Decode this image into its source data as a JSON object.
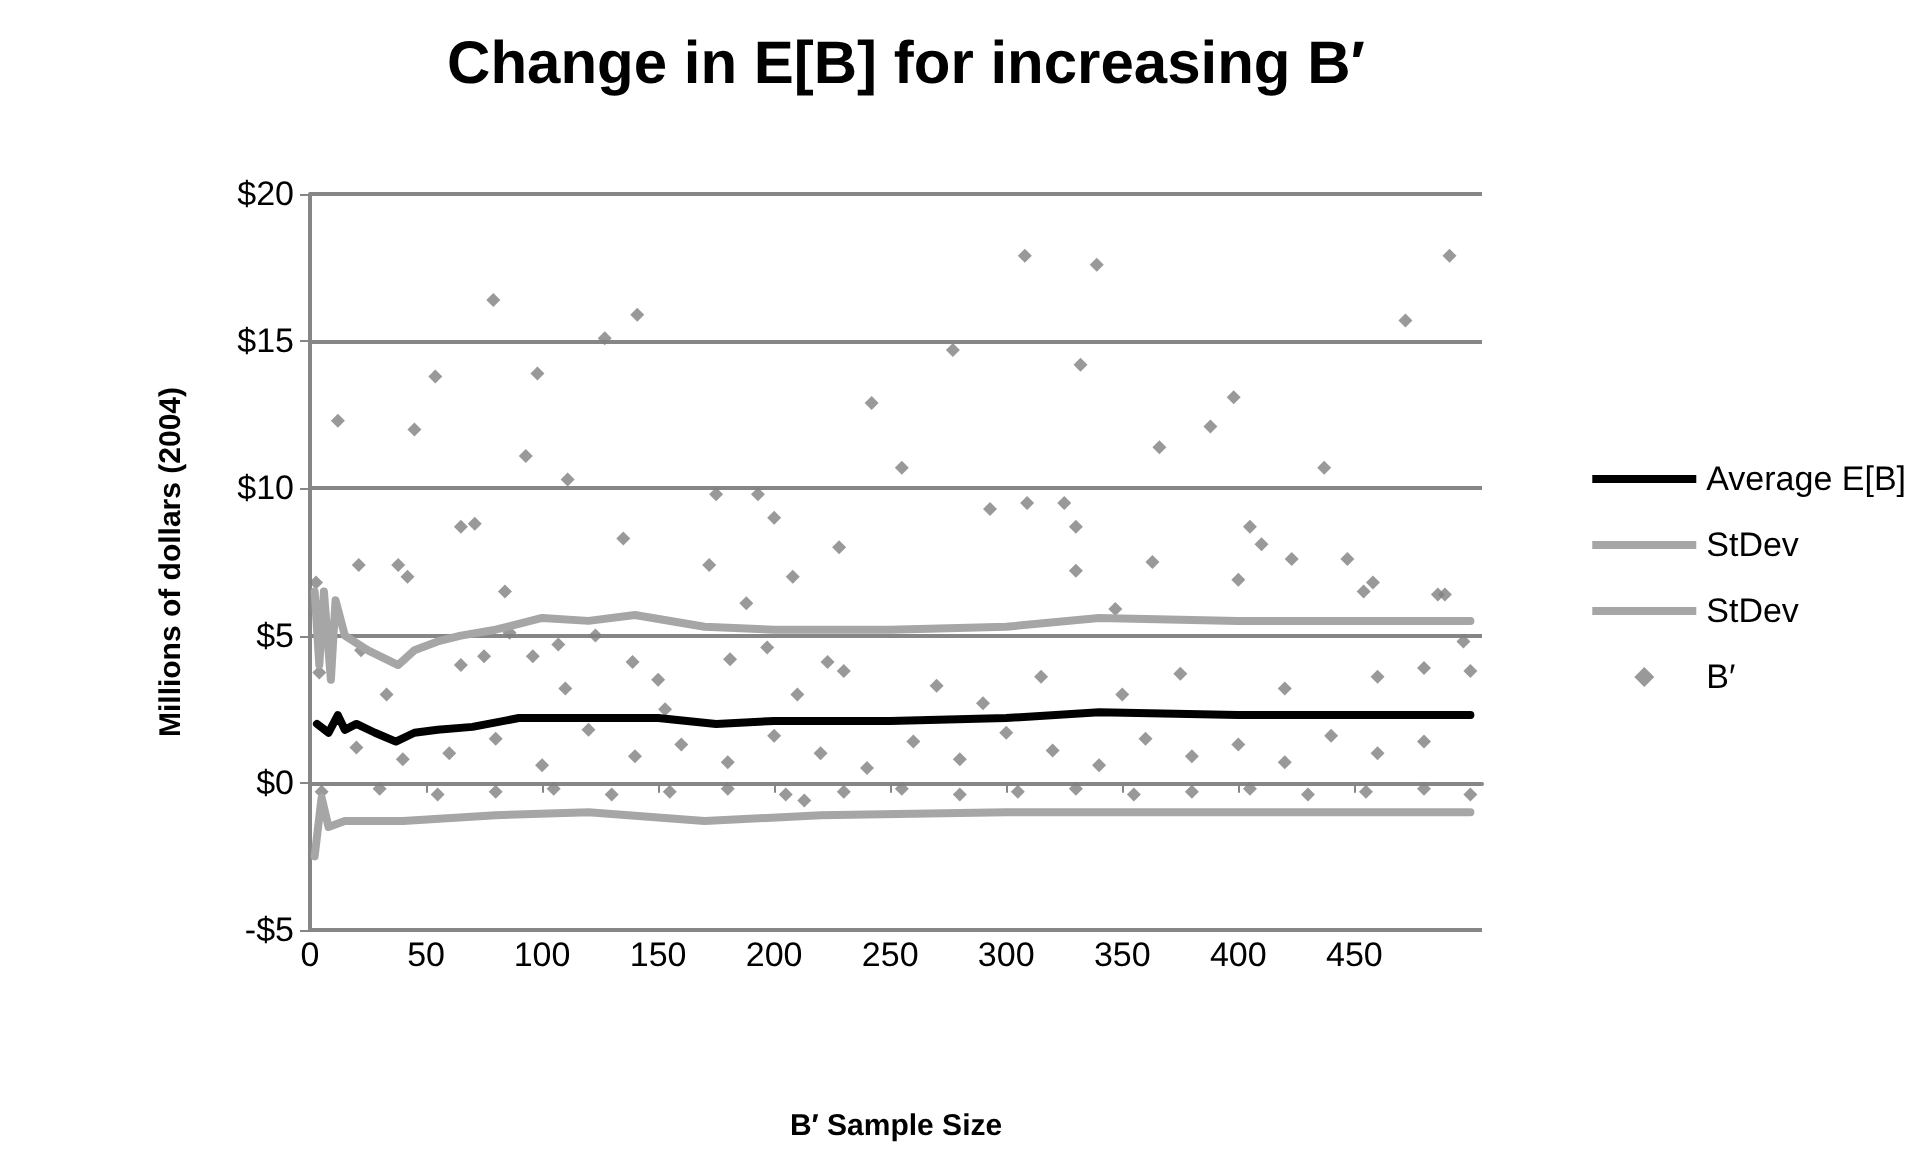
{
  "chart_data": {
    "type": "scatter",
    "title": "Change in E[B] for increasing B′",
    "xlabel": "B′ Sample Size",
    "ylabel": "Millions of dollars (2004)",
    "xlim": [
      0,
      505
    ],
    "xticks": [
      0,
      50,
      100,
      150,
      200,
      250,
      300,
      350,
      400,
      450
    ],
    "ylim": [
      -5,
      20
    ],
    "yticks": [
      {
        "value": -5,
        "label": "-$5"
      },
      {
        "value": 0,
        "label": "$0"
      },
      {
        "value": 5,
        "label": "$5"
      },
      {
        "value": 10,
        "label": "$10"
      },
      {
        "value": 15,
        "label": "$15"
      },
      {
        "value": 20,
        "label": "$20"
      }
    ],
    "grid": "y",
    "legend": "right",
    "series": [
      {
        "name": "Average E[B]",
        "type": "line",
        "color": "#000000",
        "marker": "none",
        "x": [
          3,
          8,
          12,
          15,
          20,
          28,
          37,
          45,
          55,
          70,
          90,
          120,
          150,
          175,
          200,
          250,
          300,
          340,
          400,
          450,
          500
        ],
        "values": [
          2.0,
          1.7,
          2.3,
          1.8,
          2.0,
          1.7,
          1.4,
          1.7,
          1.8,
          1.9,
          2.2,
          2.2,
          2.2,
          2.0,
          2.1,
          2.1,
          2.2,
          2.4,
          2.3,
          2.3,
          2.3
        ]
      },
      {
        "name": "StDev",
        "type": "line",
        "color": "#a6a6a6",
        "marker": "none",
        "x": [
          2,
          4,
          6,
          9,
          11,
          15,
          25,
          38,
          45,
          55,
          65,
          80,
          100,
          120,
          140,
          170,
          200,
          250,
          300,
          340,
          400,
          450,
          500
        ],
        "values": [
          6.5,
          4.0,
          6.5,
          3.5,
          6.2,
          5.0,
          4.5,
          4.0,
          4.5,
          4.8,
          5.0,
          5.2,
          5.6,
          5.5,
          5.7,
          5.3,
          5.2,
          5.2,
          5.3,
          5.6,
          5.5,
          5.5,
          5.5
        ]
      },
      {
        "name": "StDev",
        "type": "line",
        "color": "#a6a6a6",
        "marker": "none",
        "x": [
          2,
          5,
          8,
          15,
          40,
          80,
          120,
          170,
          220,
          300,
          400,
          500
        ],
        "values": [
          -2.5,
          -0.5,
          -1.5,
          -1.3,
          -1.3,
          -1.1,
          -1.0,
          -1.3,
          -1.1,
          -1.0,
          -1.0,
          -1.0
        ]
      },
      {
        "name": "B′",
        "color": "#7f7f7f",
        "marker": "diamond",
        "x": [
          2.6,
          12,
          4,
          21,
          22,
          33,
          38,
          42,
          45,
          54,
          65,
          71,
          65,
          75,
          79,
          84,
          86,
          93,
          96,
          98,
          107,
          111,
          123,
          127,
          135,
          139,
          141,
          153,
          172,
          175,
          181,
          188,
          193,
          197,
          200,
          208,
          210,
          213,
          228,
          242,
          223,
          255,
          277,
          293,
          308,
          309,
          325,
          332,
          330,
          330,
          339,
          347,
          363,
          366,
          388,
          398,
          400,
          405,
          410,
          423,
          437,
          447,
          454,
          458,
          472,
          486,
          489,
          491,
          497,
          500,
          20,
          40,
          60,
          80,
          100,
          120,
          140,
          160,
          180,
          200,
          220,
          240,
          260,
          280,
          300,
          320,
          340,
          360,
          380,
          400,
          420,
          440,
          460,
          480,
          110,
          150,
          230,
          270,
          290,
          315,
          350,
          375,
          420,
          460,
          480,
          5,
          30,
          55,
          80,
          105,
          130,
          155,
          180,
          205,
          230,
          255,
          280,
          305,
          330,
          355,
          380,
          405,
          430,
          455,
          480,
          500
        ],
        "values": [
          6.8,
          12.3,
          3.75,
          7.4,
          4.5,
          3.0,
          7.4,
          7.0,
          12.0,
          13.8,
          8.7,
          8.8,
          4.0,
          4.3,
          16.4,
          6.5,
          5.1,
          11.1,
          4.3,
          13.9,
          4.7,
          10.3,
          5.0,
          15.1,
          8.3,
          4.1,
          15.9,
          2.5,
          7.4,
          9.8,
          4.2,
          6.1,
          9.8,
          4.6,
          9.0,
          7.0,
          3.0,
          -0.6,
          8.0,
          12.9,
          4.1,
          10.7,
          14.7,
          9.3,
          17.9,
          9.5,
          9.5,
          14.2,
          8.7,
          7.2,
          17.6,
          5.9,
          7.5,
          11.4,
          12.1,
          13.1,
          6.9,
          8.7,
          8.1,
          7.6,
          10.7,
          7.6,
          6.5,
          6.8,
          15.7,
          6.4,
          6.4,
          17.9,
          4.8,
          3.8,
          1.2,
          0.8,
          1.0,
          1.5,
          0.6,
          1.8,
          0.9,
          1.3,
          0.7,
          1.6,
          1.0,
          0.5,
          1.4,
          0.8,
          1.7,
          1.1,
          0.6,
          1.5,
          0.9,
          1.3,
          0.7,
          1.6,
          1.0,
          1.4,
          3.2,
          3.5,
          3.8,
          3.3,
          2.7,
          3.6,
          3.0,
          3.7,
          3.2,
          3.6,
          3.9,
          -0.3,
          -0.2,
          -0.4,
          -0.3,
          -0.2,
          -0.4,
          -0.3,
          -0.2,
          -0.4,
          -0.3,
          -0.2,
          -0.4,
          -0.3,
          -0.2,
          -0.4,
          -0.3,
          -0.2,
          -0.4,
          -0.3,
          -0.2,
          -0.4
        ]
      }
    ]
  }
}
